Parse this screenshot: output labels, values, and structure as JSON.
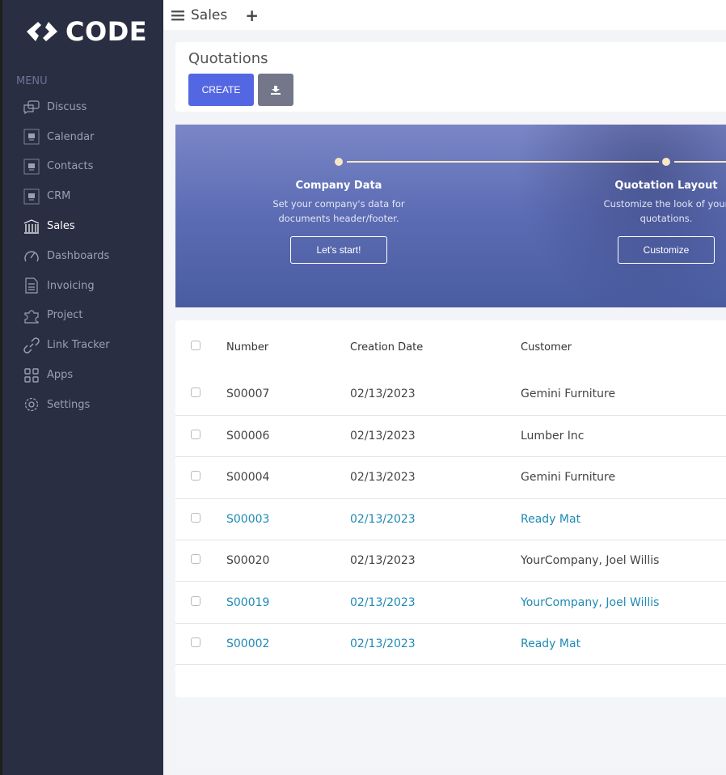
{
  "brand": {
    "name": "CODE"
  },
  "sidebar": {
    "menu_label": "MENU",
    "items": [
      {
        "label": "Discuss",
        "icon": "chat-icon"
      },
      {
        "label": "Calendar",
        "icon": "app-placeholder-icon"
      },
      {
        "label": "Contacts",
        "icon": "app-placeholder-icon"
      },
      {
        "label": "CRM",
        "icon": "app-placeholder-icon"
      },
      {
        "label": "Sales",
        "icon": "bank-icon",
        "active": true
      },
      {
        "label": "Dashboards",
        "icon": "speedometer-icon"
      },
      {
        "label": "Invoicing",
        "icon": "invoice-icon"
      },
      {
        "label": "Project",
        "icon": "puzzle-icon"
      },
      {
        "label": "Link Tracker",
        "icon": "link-icon"
      },
      {
        "label": "Apps",
        "icon": "grid-icon"
      },
      {
        "label": "Settings",
        "icon": "gear-icon"
      }
    ]
  },
  "topbar": {
    "title": "Sales",
    "add": "+"
  },
  "control": {
    "title": "Quotations",
    "create": "CREATE"
  },
  "banner": {
    "steps": [
      {
        "title": "Company Data",
        "desc_1": "Set your company's data for",
        "desc_2": "documents header/footer.",
        "button": "Let's start!"
      },
      {
        "title": "Quotation Layout",
        "desc_1": "Customize the look of your",
        "desc_2": "quotations.",
        "button": "Customize"
      }
    ]
  },
  "table": {
    "columns": [
      "Number",
      "Creation Date",
      "Customer"
    ],
    "rows": [
      {
        "number": "S00007",
        "date": "02/13/2023",
        "customer": "Gemini Furniture",
        "highlight": false
      },
      {
        "number": "S00006",
        "date": "02/13/2023",
        "customer": "Lumber Inc",
        "highlight": false
      },
      {
        "number": "S00004",
        "date": "02/13/2023",
        "customer": "Gemini Furniture",
        "highlight": false
      },
      {
        "number": "S00003",
        "date": "02/13/2023",
        "customer": "Ready Mat",
        "highlight": true
      },
      {
        "number": "S00020",
        "date": "02/13/2023",
        "customer": "YourCompany, Joel Willis",
        "highlight": false
      },
      {
        "number": "S00019",
        "date": "02/13/2023",
        "customer": "YourCompany, Joel Willis",
        "highlight": true
      },
      {
        "number": "S00002",
        "date": "02/13/2023",
        "customer": "Ready Mat",
        "highlight": true
      }
    ]
  },
  "colors": {
    "sidebar": "#292e42",
    "accent": "#5467e3",
    "link": "#1f8ab5"
  }
}
